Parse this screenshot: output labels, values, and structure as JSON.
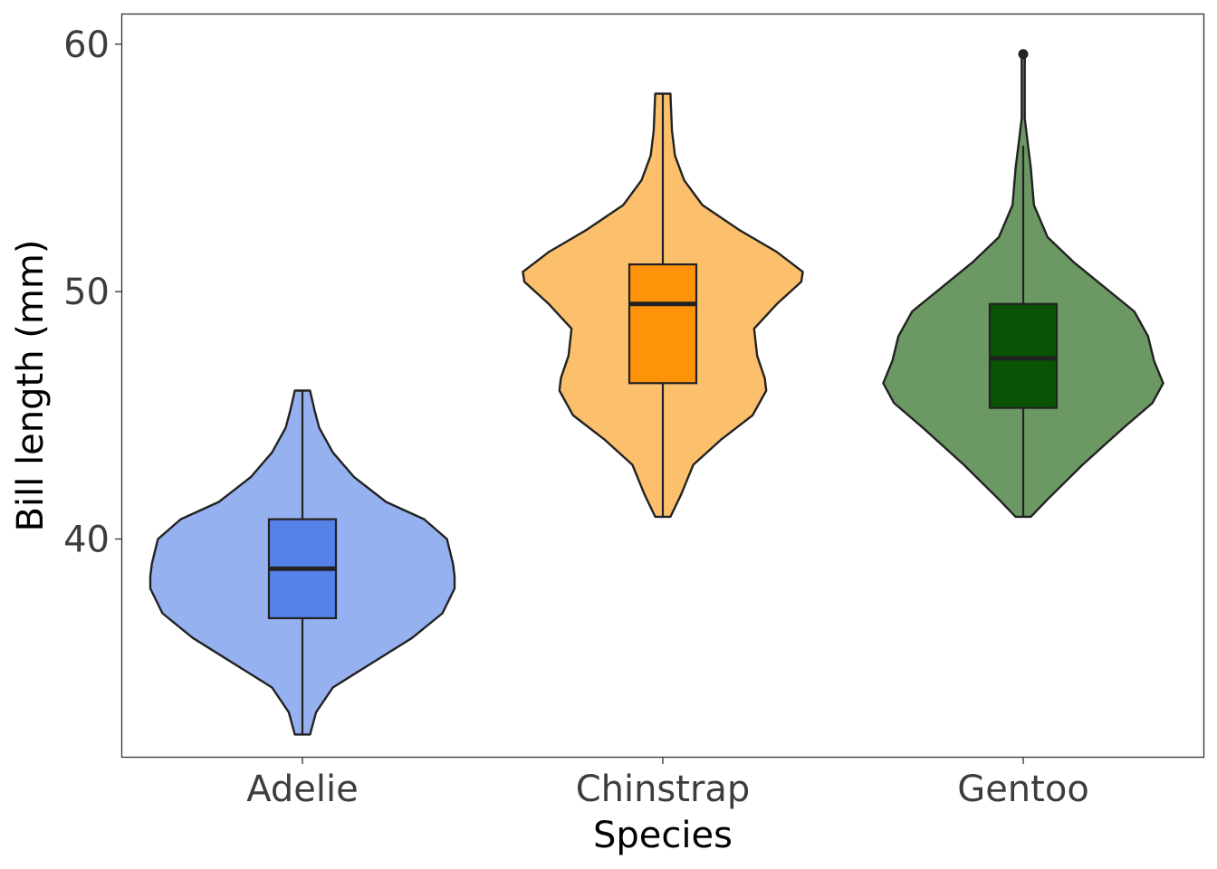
{
  "chart_data": {
    "type": "violin",
    "xlabel": "Species",
    "ylabel": "Bill length (mm)",
    "categories": [
      "Adelie",
      "Chinstrap",
      "Gentoo"
    ],
    "ylim": [
      31.2,
      61.2
    ],
    "yticks": [
      40,
      50,
      60
    ],
    "grid": false,
    "legend": "none",
    "groups": [
      {
        "name": "Adelie",
        "violin_color": "#96b1ef",
        "box_color": "#5582e8",
        "min": 32.1,
        "q1": 36.8,
        "median": 38.8,
        "q3": 40.8,
        "max": 46.0,
        "outliers": [],
        "density": [
          [
            32.1,
            0.05
          ],
          [
            33.0,
            0.09
          ],
          [
            34.0,
            0.2
          ],
          [
            35.0,
            0.46
          ],
          [
            36.0,
            0.72
          ],
          [
            37.0,
            0.92
          ],
          [
            38.0,
            1.0
          ],
          [
            38.5,
            1.0
          ],
          [
            39.0,
            0.99
          ],
          [
            40.0,
            0.95
          ],
          [
            40.8,
            0.8
          ],
          [
            41.5,
            0.55
          ],
          [
            42.5,
            0.34
          ],
          [
            43.5,
            0.2
          ],
          [
            44.5,
            0.11
          ],
          [
            45.2,
            0.08
          ],
          [
            46.0,
            0.05
          ]
        ]
      },
      {
        "name": "Chinstrap",
        "violin_color": "#fcc06c",
        "box_color": "#fe930a",
        "min": 40.9,
        "q1": 46.3,
        "median": 49.5,
        "q3": 51.1,
        "max": 58.0,
        "outliers": [],
        "density": [
          [
            40.9,
            0.05
          ],
          [
            41.8,
            0.12
          ],
          [
            43.0,
            0.2
          ],
          [
            44.0,
            0.38
          ],
          [
            45.0,
            0.59
          ],
          [
            46.0,
            0.68
          ],
          [
            46.5,
            0.67
          ],
          [
            47.4,
            0.62
          ],
          [
            48.5,
            0.6
          ],
          [
            49.5,
            0.75
          ],
          [
            50.4,
            0.91
          ],
          [
            50.8,
            0.92
          ],
          [
            51.6,
            0.75
          ],
          [
            52.5,
            0.5
          ],
          [
            53.5,
            0.26
          ],
          [
            54.5,
            0.14
          ],
          [
            55.5,
            0.08
          ],
          [
            56.5,
            0.06
          ],
          [
            58.0,
            0.05
          ]
        ]
      },
      {
        "name": "Gentoo",
        "violin_color": "#6b9863",
        "box_color": "#0a5305",
        "min": 40.9,
        "q1": 45.3,
        "median": 47.3,
        "q3": 49.5,
        "max": 55.9,
        "outliers": [
          59.6
        ],
        "density": [
          [
            40.9,
            0.05
          ],
          [
            41.6,
            0.16
          ],
          [
            43.0,
            0.39
          ],
          [
            44.5,
            0.66
          ],
          [
            45.5,
            0.85
          ],
          [
            46.3,
            0.92
          ],
          [
            47.2,
            0.86
          ],
          [
            48.2,
            0.82
          ],
          [
            49.2,
            0.73
          ],
          [
            50.2,
            0.53
          ],
          [
            51.2,
            0.33
          ],
          [
            52.2,
            0.16
          ],
          [
            53.5,
            0.07
          ],
          [
            55.0,
            0.05
          ],
          [
            56.0,
            0.03
          ],
          [
            57.0,
            0.01
          ],
          [
            58.0,
            0.01
          ],
          [
            59.0,
            0.01
          ],
          [
            59.6,
            0.01
          ]
        ]
      }
    ]
  }
}
